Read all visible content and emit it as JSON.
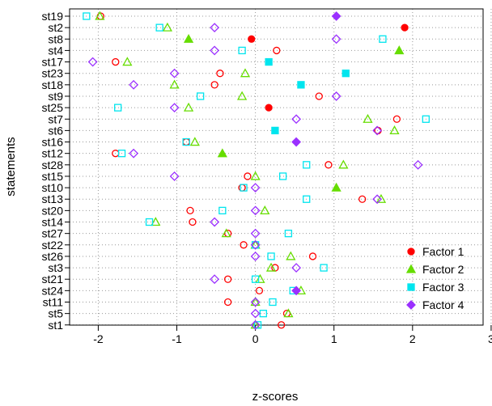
{
  "chart_data": {
    "type": "scatter",
    "title": "",
    "xlabel": "z-scores",
    "ylabel": "statements",
    "xlim": [
      -2.2,
      3.0
    ],
    "x_ticks": [
      -2,
      -1,
      0,
      1,
      2,
      3
    ],
    "x_tick_labels": [
      "-2",
      "-1",
      "0",
      "1",
      "2",
      "3"
    ],
    "grid": true,
    "legend_position": "bottom-right",
    "statements": [
      "st19",
      "st2",
      "st8",
      "st4",
      "st17",
      "st23",
      "st18",
      "st9",
      "st25",
      "st7",
      "st6",
      "st16",
      "st12",
      "st28",
      "st15",
      "st10",
      "st13",
      "st20",
      "st14",
      "st27",
      "st22",
      "st26",
      "st3",
      "st21",
      "st24",
      "st11",
      "st5",
      "st1"
    ],
    "series": [
      {
        "name": "Factor 1",
        "color": "#ff0000",
        "marker": "circle",
        "highlight": [
          "st2",
          "st8",
          "st25"
        ],
        "values": [
          -1.97,
          1.9,
          -0.05,
          0.27,
          -1.78,
          -0.45,
          -0.52,
          0.81,
          0.17,
          1.8,
          1.56,
          -0.88,
          -1.78,
          0.93,
          -0.1,
          -0.17,
          1.36,
          -0.83,
          -0.8,
          -0.35,
          -0.15,
          0.73,
          0.25,
          -0.35,
          0.05,
          -0.35,
          0.4,
          0.33
        ]
      },
      {
        "name": "Factor 2",
        "color": "#66dd00",
        "marker": "triangle",
        "highlight": [
          "st8",
          "st4",
          "st12",
          "st10"
        ],
        "values": [
          -1.98,
          -1.12,
          -0.85,
          1.83,
          -1.63,
          -0.13,
          -1.03,
          -0.17,
          -0.85,
          1.43,
          1.77,
          -0.77,
          -0.42,
          1.12,
          0.0,
          1.03,
          1.6,
          0.12,
          -1.27,
          -0.37,
          0.0,
          0.45,
          0.2,
          0.06,
          0.58,
          0.0,
          0.42,
          0.0
        ]
      },
      {
        "name": "Factor 3",
        "color": "#00e5ee",
        "marker": "square",
        "highlight": [
          "st17",
          "st23",
          "st18",
          "st6"
        ],
        "values": [
          -2.15,
          -1.22,
          1.62,
          -0.17,
          0.17,
          1.15,
          0.58,
          -0.7,
          -1.75,
          2.17,
          0.25,
          -0.88,
          -1.7,
          0.65,
          0.35,
          -0.15,
          0.65,
          -0.42,
          -1.35,
          0.42,
          0.0,
          0.2,
          0.87,
          0.0,
          0.48,
          0.22,
          0.1,
          0.03
        ]
      },
      {
        "name": "Factor 4",
        "color": "#9b30ff",
        "marker": "diamond",
        "highlight": [
          "st19",
          "st16",
          "st24"
        ],
        "values": [
          1.03,
          -0.52,
          1.03,
          -0.52,
          -2.07,
          -1.03,
          -1.55,
          1.03,
          -1.03,
          0.52,
          1.55,
          0.52,
          -1.55,
          2.07,
          -1.03,
          0.0,
          1.55,
          0.0,
          -0.52,
          0.0,
          0.0,
          0.0,
          0.52,
          -0.52,
          0.52,
          0.0,
          0.0,
          0.0
        ]
      }
    ]
  }
}
